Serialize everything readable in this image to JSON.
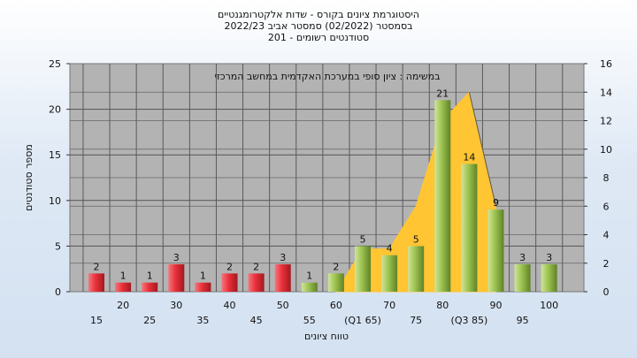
{
  "chart_data": {
    "type": "bar",
    "title_lines": [
      "היסטוגרמת ציונים בקורס - שדות אלקטרומגנטיים",
      "בסמסטר  (02/2022)  סמסטר אביב 2022/23",
      "סטודנטים רשומים - 201"
    ],
    "subtitle": "במשימה : ציון סופי במערכת האקדמית במחשב המרכזי",
    "ylabel": "מספר סטודנטים",
    "xlabel": "טווח ציונים",
    "ylim": [
      0,
      25
    ],
    "y_ticks": [
      0,
      5,
      10,
      15,
      20,
      25
    ],
    "y2lim": [
      0,
      16
    ],
    "y2_ticks": [
      0,
      2,
      4,
      6,
      8,
      10,
      12,
      14,
      16
    ],
    "x_tick_labels": [
      "15",
      "20",
      "25",
      "30",
      "35",
      "40",
      "45",
      "50",
      "55",
      "60",
      "(Q1 65)",
      "70",
      "75",
      "80",
      "(Q3 85)",
      "90",
      "95",
      "100"
    ],
    "categories": [
      "15",
      "20",
      "25",
      "30",
      "35",
      "40",
      "45",
      "50",
      "55",
      "60",
      "65",
      "70",
      "75",
      "80",
      "85",
      "90",
      "95",
      "100"
    ],
    "values": [
      2,
      1,
      1,
      3,
      1,
      2,
      2,
      3,
      1,
      2,
      5,
      4,
      5,
      21,
      14,
      9,
      3,
      3
    ],
    "bar_color_low": "#e8303a",
    "bar_color_high": "#9cc24f",
    "pass_from_category": "55",
    "area_series": {
      "color": "#ffc533",
      "x": [
        "60",
        "65",
        "70",
        "75",
        "80",
        "85",
        "90"
      ],
      "values": [
        0,
        3,
        3,
        6,
        12,
        14,
        6
      ]
    },
    "plot_background": "#b3b3b3",
    "grid": true,
    "legend": "none"
  }
}
